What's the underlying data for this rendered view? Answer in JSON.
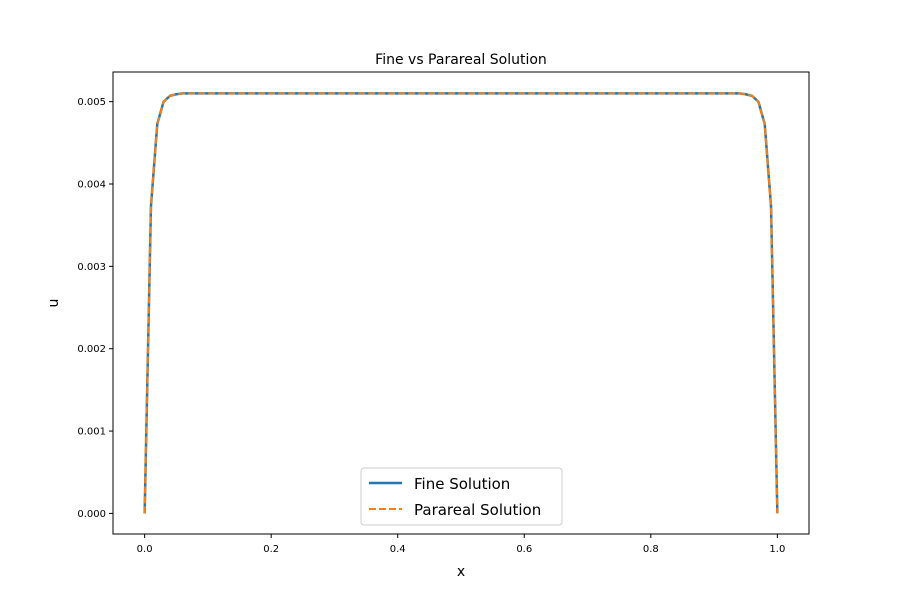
{
  "chart_data": {
    "type": "line",
    "title": "Fine vs Parareal Solution",
    "xlabel": "x",
    "ylabel": "u",
    "xlim": [
      -0.05,
      1.05
    ],
    "ylim": [
      -0.00025,
      0.00536
    ],
    "xticks": [
      0.0,
      0.2,
      0.4,
      0.6,
      0.8,
      1.0
    ],
    "xtick_labels": [
      "0.0",
      "0.2",
      "0.4",
      "0.6",
      "0.8",
      "1.0"
    ],
    "yticks": [
      0.0,
      0.001,
      0.002,
      0.003,
      0.004,
      0.005
    ],
    "ytick_labels": [
      "0.000",
      "0.001",
      "0.002",
      "0.003",
      "0.004",
      "0.005"
    ],
    "grid": false,
    "legend_position": "lower-center",
    "x": [
      0.0,
      0.01,
      0.02,
      0.03,
      0.04,
      0.05,
      0.06,
      0.08,
      0.1,
      0.2,
      0.3,
      0.4,
      0.5,
      0.6,
      0.7,
      0.8,
      0.9,
      0.92,
      0.94,
      0.95,
      0.96,
      0.97,
      0.98,
      0.99,
      1.0
    ],
    "series": [
      {
        "name": "Fine Solution",
        "color": "#1f77b4",
        "style": "solid",
        "values": [
          0.0,
          0.00373,
          0.00473,
          0.005,
          0.00507,
          0.00509,
          0.0051,
          0.0051,
          0.0051,
          0.0051,
          0.0051,
          0.0051,
          0.0051,
          0.0051,
          0.0051,
          0.0051,
          0.0051,
          0.0051,
          0.0051,
          0.00509,
          0.00507,
          0.005,
          0.00473,
          0.00373,
          0.0
        ]
      },
      {
        "name": "Parareal Solution",
        "color": "#ff7f0e",
        "style": "dashed",
        "values": [
          0.0,
          0.00373,
          0.00473,
          0.005,
          0.00507,
          0.00509,
          0.0051,
          0.0051,
          0.0051,
          0.0051,
          0.0051,
          0.0051,
          0.0051,
          0.0051,
          0.0051,
          0.0051,
          0.0051,
          0.0051,
          0.0051,
          0.00509,
          0.00507,
          0.005,
          0.00473,
          0.00373,
          0.0
        ]
      }
    ]
  }
}
